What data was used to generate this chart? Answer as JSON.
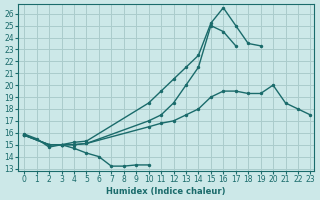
{
  "xlabel": "Humidex (Indice chaleur)",
  "background_color": "#cce8e8",
  "grid_color": "#aacccc",
  "line_color": "#1a6b6b",
  "xlim": [
    -0.5,
    23.3
  ],
  "ylim": [
    12.8,
    26.8
  ],
  "xticks": [
    0,
    1,
    2,
    3,
    4,
    5,
    6,
    7,
    8,
    9,
    10,
    11,
    12,
    13,
    14,
    15,
    16,
    17,
    18,
    19,
    20,
    21,
    22,
    23
  ],
  "yticks": [
    13,
    14,
    15,
    16,
    17,
    18,
    19,
    20,
    21,
    22,
    23,
    24,
    25,
    26
  ],
  "curve1_x": [
    0,
    1,
    2,
    3,
    4,
    5,
    6,
    7,
    8,
    9,
    10
  ],
  "curve1_y": [
    15.9,
    15.5,
    14.8,
    15.0,
    14.7,
    14.3,
    14.0,
    13.2,
    13.2,
    13.3,
    13.3
  ],
  "curve2_x": [
    0,
    2,
    3,
    4,
    5,
    10,
    11,
    12,
    13,
    14,
    15,
    16,
    17,
    18,
    19,
    20,
    21,
    22,
    23
  ],
  "curve2_y": [
    15.8,
    15.0,
    15.0,
    15.0,
    15.1,
    16.5,
    16.8,
    17.0,
    17.5,
    18.0,
    19.0,
    19.5,
    19.5,
    19.3,
    19.3,
    20.0,
    18.5,
    18.0,
    17.5
  ],
  "curve3_x": [
    0,
    2,
    3,
    4,
    5,
    10,
    11,
    12,
    13,
    14,
    15,
    16,
    17,
    18,
    19
  ],
  "curve3_y": [
    15.8,
    15.0,
    15.0,
    15.2,
    15.3,
    18.5,
    19.5,
    20.5,
    21.5,
    22.5,
    25.2,
    26.5,
    25.0,
    23.5,
    23.3
  ],
  "curve4_x": [
    0,
    2,
    3,
    4,
    5,
    10,
    11,
    12,
    13,
    14,
    15,
    16,
    17
  ],
  "curve4_y": [
    15.8,
    15.0,
    15.0,
    15.0,
    15.1,
    17.0,
    17.5,
    18.5,
    20.0,
    21.5,
    25.0,
    24.5,
    23.3
  ]
}
